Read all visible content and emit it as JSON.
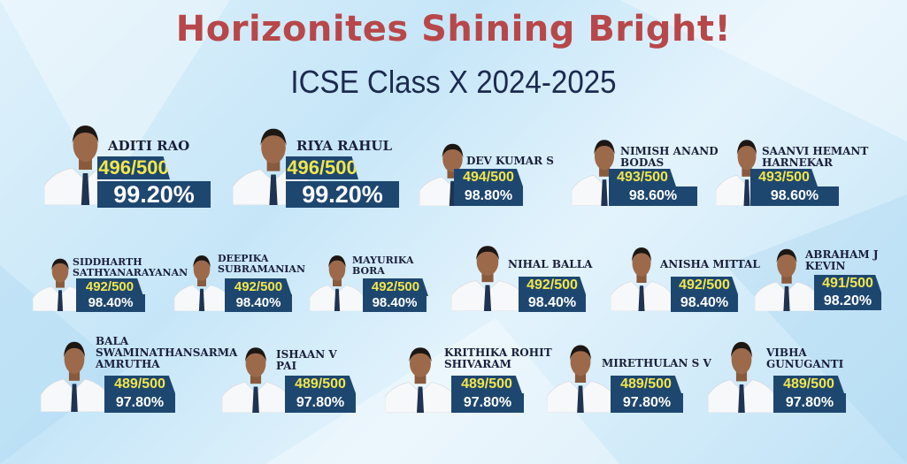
{
  "header": {
    "title": "Horizonites Shining Bright!",
    "subtitle": "ICSE Class X  2024-2025"
  },
  "colors": {
    "title": "#b8474a",
    "subtitle": "#1c2a4f",
    "badge_bg": "#1e4770",
    "score_text": "#f2e64b",
    "percent_text": "#ffffff",
    "shirt": "#f7f8fa",
    "tie": "#1f3352"
  },
  "icons": {
    "student_photo": "student-portrait-icon"
  },
  "students": [
    {
      "name": "ADITI RAO",
      "score": "496/500",
      "percent": "99.20%"
    },
    {
      "name": "RIYA RAHUL",
      "score": "496/500",
      "percent": "99.20%"
    },
    {
      "name": "DEV KUMAR  S",
      "score": "494/500",
      "percent": "98.80%"
    },
    {
      "name": "NIMISH ANAND\nBODAS",
      "score": "493/500",
      "percent": "98.60%"
    },
    {
      "name": "SAANVI HEMANT\nHARNEKAR",
      "score": "493/500",
      "percent": "98.60%"
    },
    {
      "name": "SIDDHARTH\nSATHYANARAYANAN",
      "score": "492/500",
      "percent": "98.40%"
    },
    {
      "name": "DEEPIKA\nSUBRAMANIAN",
      "score": "492/500",
      "percent": "98.40%"
    },
    {
      "name": "MAYURIKA\nBORA",
      "score": "492/500",
      "percent": "98.40%"
    },
    {
      "name": "NIHAL BALLA",
      "score": "492/500",
      "percent": "98.40%"
    },
    {
      "name": "ANISHA MITTAL",
      "score": "492/500",
      "percent": "98.40%"
    },
    {
      "name": "ABRAHAM J\nKEVIN",
      "score": "491/500",
      "percent": "98.20%"
    },
    {
      "name": "BALA\nSWAMINATHANSARMA\nAMRUTHA",
      "score": "489/500",
      "percent": "97.80%"
    },
    {
      "name": "ISHAAN V\nPAI",
      "score": "489/500",
      "percent": "97.80%"
    },
    {
      "name": "KRITHIKA ROHIT\nSHIVARAM",
      "score": "489/500",
      "percent": "97.80%"
    },
    {
      "name": "MIRETHULAN S V",
      "score": "489/500",
      "percent": "97.80%"
    },
    {
      "name": "VIBHA\nGUNUGANTI",
      "score": "489/500",
      "percent": "97.80%"
    }
  ]
}
